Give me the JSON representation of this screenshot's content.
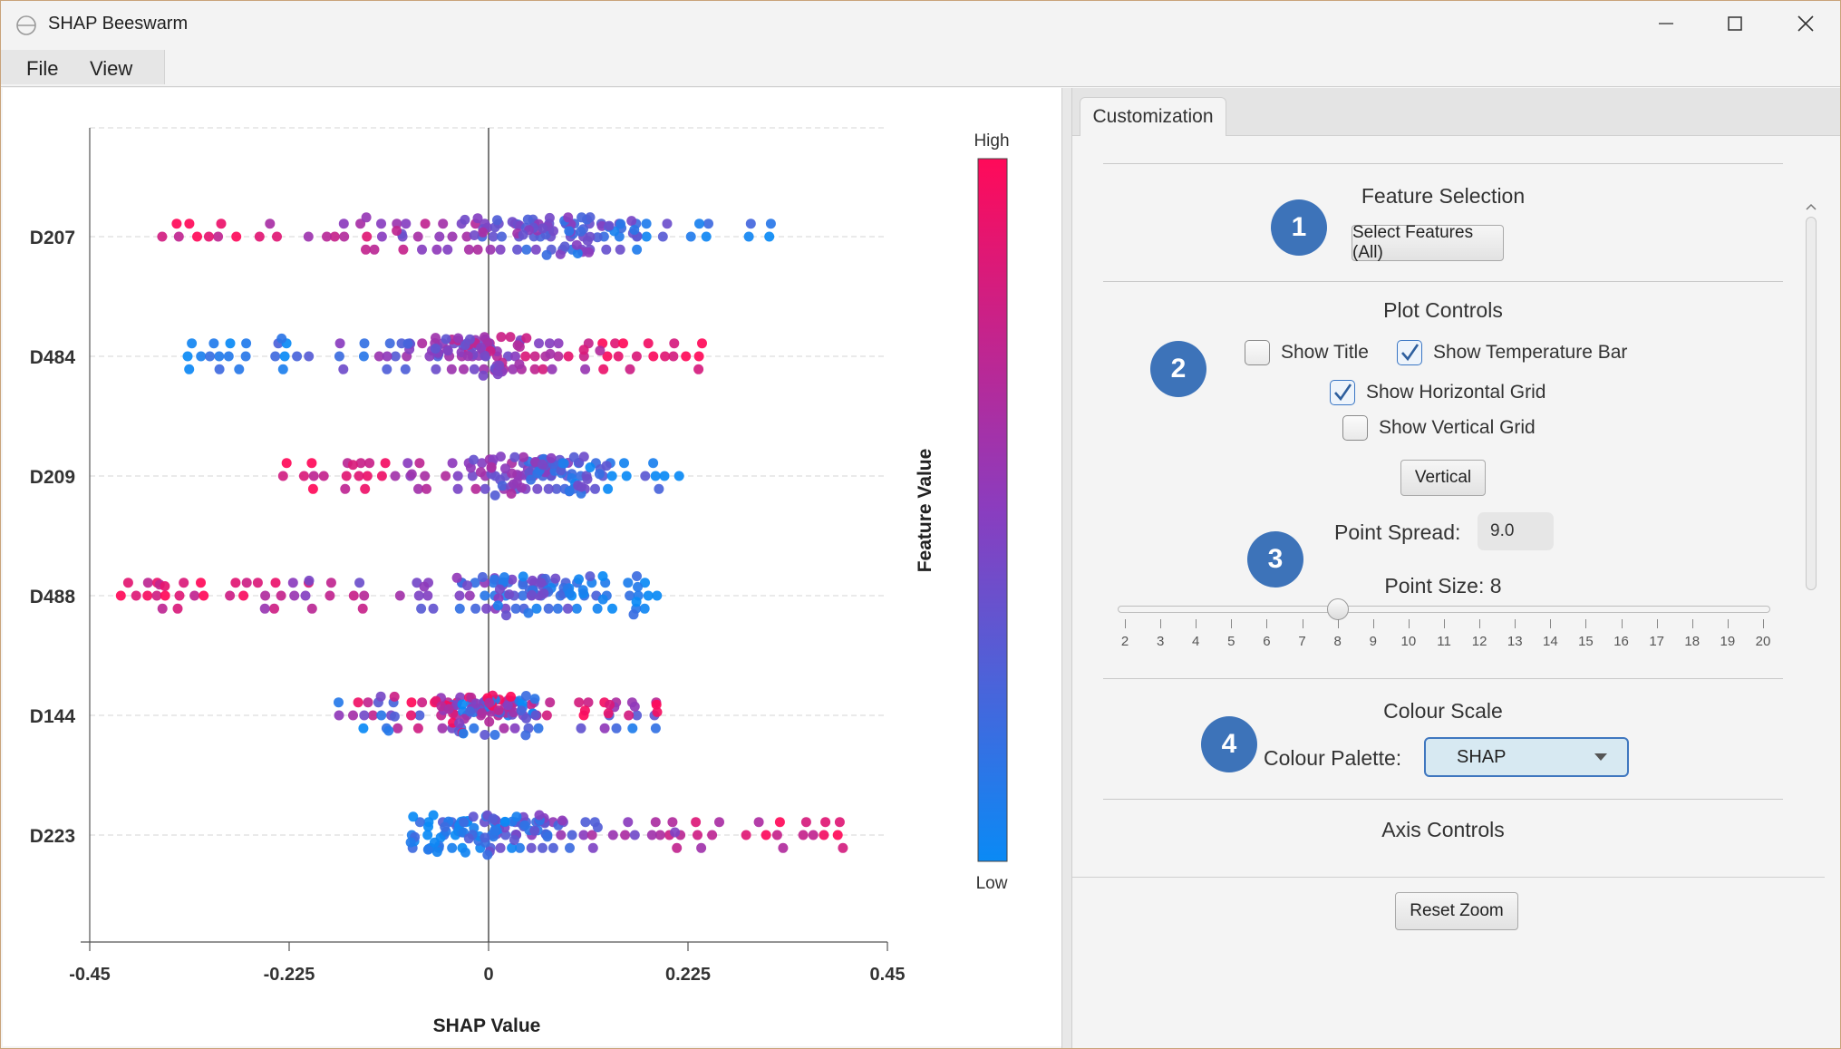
{
  "window": {
    "title": "SHAP Beeswarm"
  },
  "menu": [
    {
      "label": "File"
    },
    {
      "label": "View"
    }
  ],
  "colors": {
    "high": "#ff0a59",
    "mid": "#8a3dbf",
    "low": "#0a8af5",
    "accent": "#3d73b9"
  },
  "chart_data": {
    "type": "scatter",
    "subtype": "beeswarm",
    "xlabel": "SHAP Value",
    "ylabel": "",
    "xlim": [
      -0.45,
      0.45
    ],
    "x_ticks": [
      -0.45,
      -0.225,
      0,
      0.225,
      0.45
    ],
    "x_tick_labels": [
      "-0.45",
      "-0.225",
      "0",
      "0.225",
      "0.45"
    ],
    "horizontal_grid": true,
    "vertical_grid": false,
    "zero_line": true,
    "features": [
      "D207",
      "D484",
      "D209",
      "D488",
      "D144",
      "D223"
    ],
    "colorbar": {
      "label": "Feature Value",
      "high_label": "High",
      "low_label": "Low",
      "placement": "right"
    },
    "series": [
      {
        "feature": "D207",
        "x_min": -0.39,
        "x_max": 0.32,
        "high_side": "negative"
      },
      {
        "feature": "D484",
        "x_min": -0.34,
        "x_max": 0.26,
        "high_side": "positive"
      },
      {
        "feature": "D209",
        "x_min": -0.24,
        "x_max": 0.22,
        "high_side": "negative"
      },
      {
        "feature": "D488",
        "x_min": -0.42,
        "x_max": 0.19,
        "high_side": "negative"
      },
      {
        "feature": "D144",
        "x_min": -0.17,
        "x_max": 0.2,
        "high_side": "mixed"
      },
      {
        "feature": "D223",
        "x_min": -0.09,
        "x_max": 0.4,
        "high_side": "positive"
      }
    ]
  },
  "panel": {
    "tab_label": "Customization",
    "feature_selection": {
      "title": "Feature Selection",
      "button": "Select Features (All)",
      "badge": "1"
    },
    "plot_controls": {
      "title": "Plot Controls",
      "badge": "2",
      "show_title": {
        "label": "Show Title",
        "checked": false
      },
      "show_temp_bar": {
        "label": "Show Temperature Bar",
        "checked": true
      },
      "show_hgrid": {
        "label": "Show Horizontal Grid",
        "checked": true
      },
      "show_vgrid": {
        "label": "Show Vertical Grid",
        "checked": false
      },
      "orientation_button": "Vertical"
    },
    "point": {
      "badge": "3",
      "spread_label": "Point Spread:",
      "spread_value": "9.0",
      "size_label": "Point Size: 8",
      "size_value": 8,
      "size_min": 2,
      "size_max": 20,
      "size_ticks": [
        "2",
        "3",
        "4",
        "5",
        "6",
        "7",
        "8",
        "9",
        "10",
        "11",
        "12",
        "13",
        "14",
        "15",
        "16",
        "17",
        "18",
        "19",
        "20"
      ]
    },
    "colour_scale": {
      "title": "Colour Scale",
      "badge": "4",
      "palette_label": "Colour Palette:",
      "palette_value": "SHAP"
    },
    "axis_controls": {
      "title": "Axis Controls"
    },
    "reset_zoom": "Reset Zoom"
  }
}
